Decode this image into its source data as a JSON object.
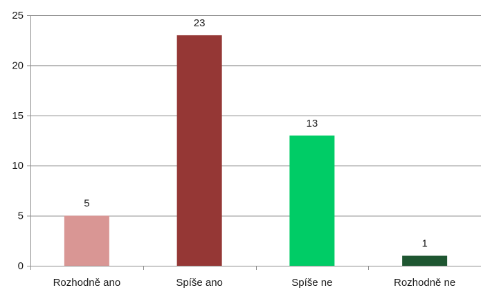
{
  "chart_data": {
    "type": "bar",
    "title": "",
    "xlabel": "",
    "ylabel": "",
    "categories": [
      "Rozhodně ano",
      "Spíše ano",
      "Spíše ne",
      "Rozhodně ne"
    ],
    "values": [
      5,
      23,
      13,
      1
    ],
    "colors": [
      "#d99694",
      "#953735",
      "#00cc66",
      "#1e5631"
    ],
    "data_labels": [
      "5",
      "23",
      "13",
      "1"
    ],
    "yticks": [
      0,
      5,
      10,
      15,
      20,
      25
    ],
    "ytick_labels": [
      "0",
      "5",
      "10",
      "15",
      "20",
      "25"
    ],
    "ylim": [
      0,
      25
    ],
    "grid": true,
    "legend": "none"
  }
}
